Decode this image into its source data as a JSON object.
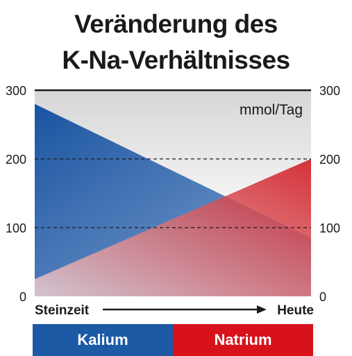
{
  "chart_data": {
    "type": "area",
    "title": "Veränderung des K-Na-Verhältnisses",
    "title_lines": [
      "Veränderung des",
      "K-Na-Verhältnisses"
    ],
    "unit_label": "mmol/Tag",
    "x_start_label": "Steinzeit",
    "x_end_label": "Heute",
    "x": [
      "Steinzeit",
      "Heute"
    ],
    "ylim": [
      0,
      300
    ],
    "y_ticks": [
      0,
      100,
      200,
      300
    ],
    "grid": "dashed at 100 and 200",
    "series": [
      {
        "name": "Kalium",
        "values": [
          280,
          85
        ],
        "color": "#1d5aa6"
      },
      {
        "name": "Natrium",
        "values": [
          25,
          200
        ],
        "color": "#d8121b"
      }
    ]
  }
}
